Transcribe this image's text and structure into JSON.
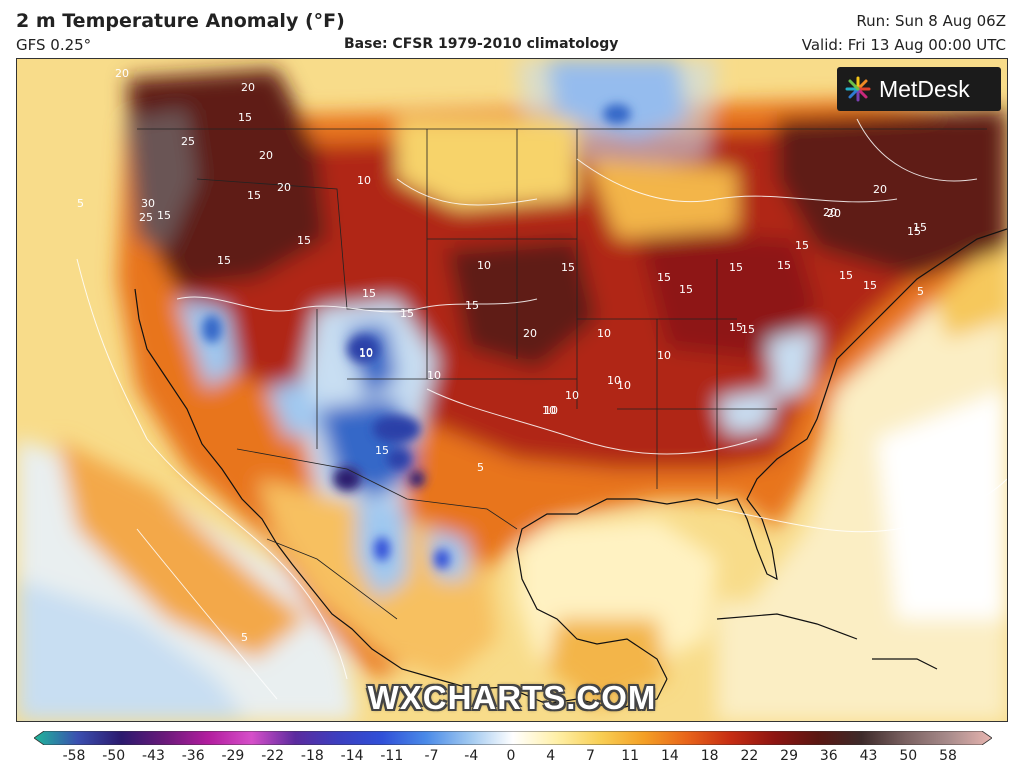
{
  "header": {
    "title": "2 m Temperature Anomaly (°F)",
    "model": "GFS 0.25°",
    "base": "Base: CFSR 1979-2010 climatology",
    "run": "Run: Sun 8 Aug 06Z",
    "valid": "Valid: Fri 13 Aug 00:00 UTC"
  },
  "logo": {
    "text": "MetDesk"
  },
  "watermark": "WXCHARTS.COM",
  "colorbar": {
    "ticks": [
      "-58",
      "-50",
      "-43",
      "-36",
      "-29",
      "-22",
      "-18",
      "-14",
      "-11",
      "-7",
      "-4",
      "0",
      "4",
      "7",
      "11",
      "14",
      "18",
      "22",
      "29",
      "36",
      "43",
      "50",
      "58"
    ],
    "colors": [
      "#1fb89a",
      "#3b4fb0",
      "#2b1a6e",
      "#6a1a7a",
      "#b21d9e",
      "#d64fc9",
      "#5b2b9e",
      "#3b3fc0",
      "#3050d8",
      "#4a8ae8",
      "#9fc8f0",
      "#ffffff",
      "#fff0a8",
      "#f8cf55",
      "#f4a025",
      "#e8641a",
      "#c62d13",
      "#8e1512",
      "#5b1712",
      "#3d2a2a",
      "#7a6161",
      "#a88b8b",
      "#e8b5b0"
    ]
  },
  "map": {
    "contour_labels": [
      "20",
      "25",
      "20",
      "15",
      "20",
      "30",
      "15",
      "15",
      "20",
      "25",
      "15",
      "15",
      "10",
      "15",
      "15",
      "10",
      "10",
      "15",
      "20",
      "10",
      "10",
      "15",
      "15",
      "15",
      "10",
      "15",
      "15",
      "15",
      "15",
      "20",
      "15",
      "20",
      "15",
      "15",
      "15",
      "20",
      "10",
      "10",
      "15",
      "10",
      "10",
      "10",
      "10",
      "15",
      "5",
      "5",
      "5",
      "5"
    ],
    "colors": {
      "deep_warm": "#5e1a12",
      "warm": "#b02514",
      "orange": "#e8741e",
      "yellow": "#f7d36a",
      "pale": "#fbeec4",
      "cool": "#c8def2",
      "blue": "#3567c8",
      "grey_max": "#6b5454"
    }
  }
}
